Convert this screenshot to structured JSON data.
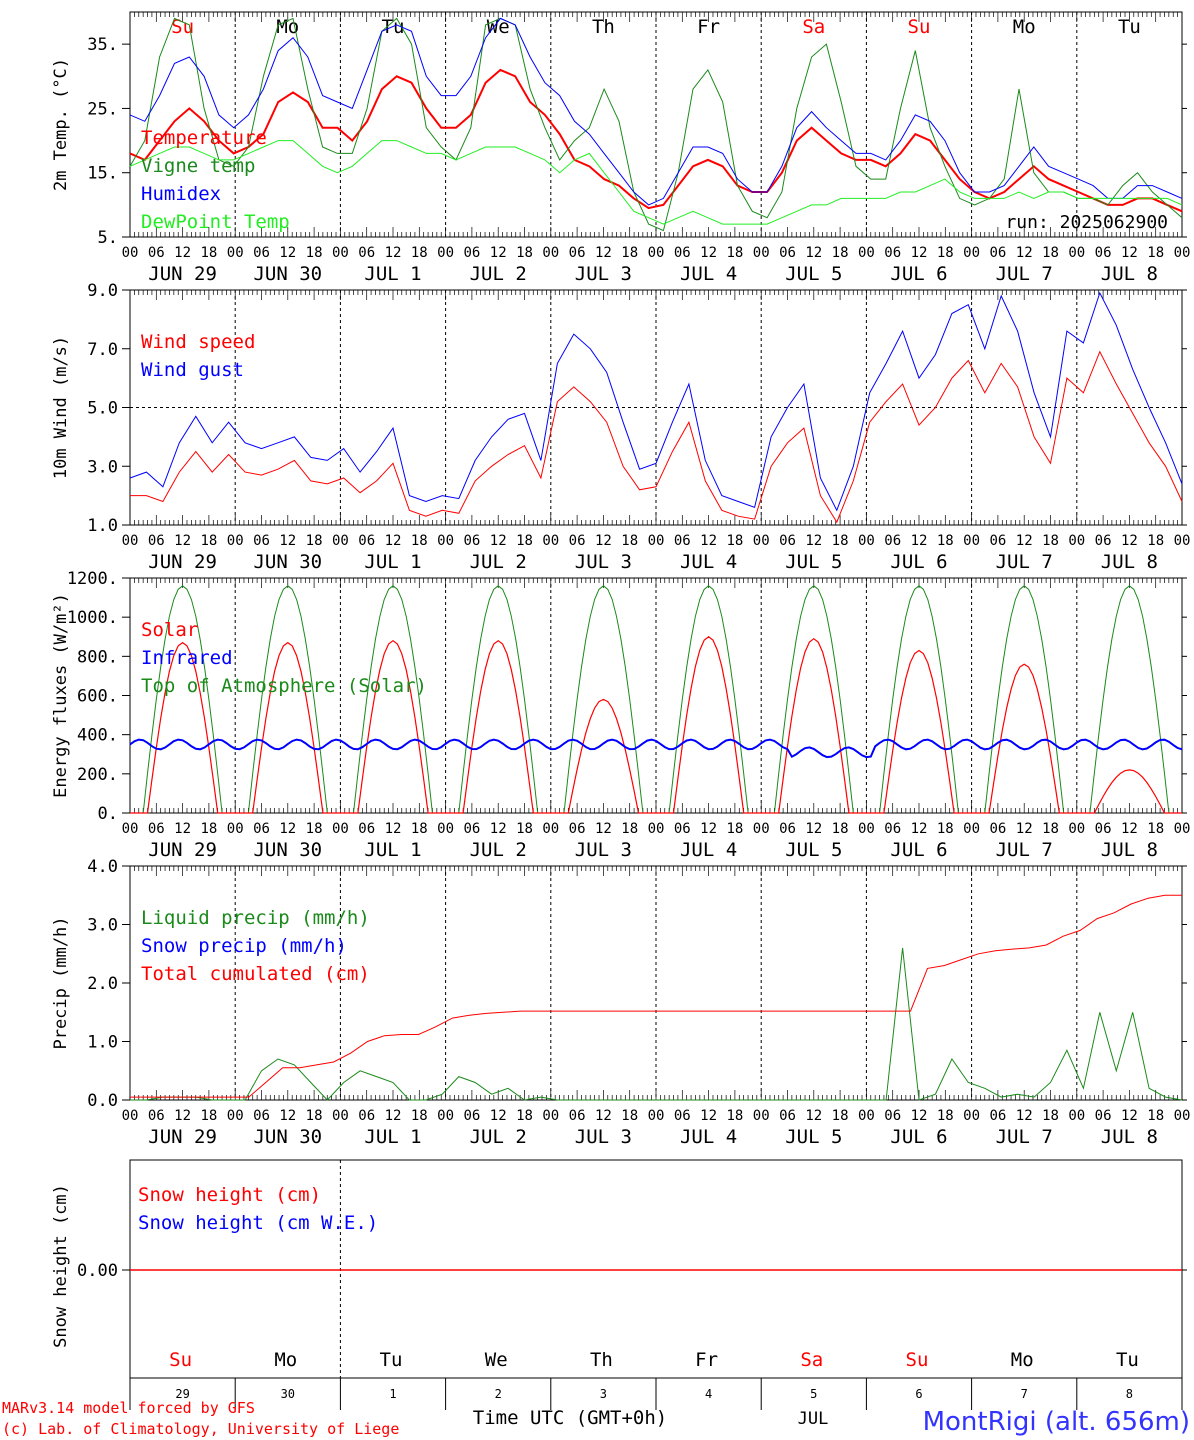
{
  "run_label": "run: 2025062900",
  "x_time_labels": [
    "00",
    "06",
    "12",
    "18"
  ],
  "date_labels": [
    "JUN 29",
    "JUN 30",
    "JUL  1",
    "JUL  2",
    "JUL  3",
    "JUL  4",
    "JUL  5",
    "JUL  6",
    "JUL  7",
    "JUL  8"
  ],
  "weekdays": [
    "Su",
    "Mo",
    "Tu",
    "We",
    "Th",
    "Fr",
    "Sa",
    "Su",
    "Mo",
    "Tu"
  ],
  "weekday_colors": [
    "#ff0000",
    "#000000",
    "#000000",
    "#000000",
    "#000000",
    "#000000",
    "#ff0000",
    "#ff0000",
    "#000000",
    "#000000"
  ],
  "footer": {
    "credit_line1": "MARv3.14 model forced by GFS",
    "credit_line2": "(c) Lab. of Climatology, University of Liege",
    "axis_title": "Time UTC (GMT+0h)",
    "month_label": "JUL",
    "day_numbers": [
      "29",
      "30",
      "1",
      "2",
      "3",
      "4",
      "5",
      "6",
      "7",
      "8"
    ],
    "station": "MontRigi (alt. 656m)"
  },
  "colors": {
    "red": "#ff0000",
    "green": "#1a8a1a",
    "blue": "#0000ff",
    "lightgreen": "#22ee22"
  },
  "chart_data": [
    {
      "type": "line",
      "ylabel": "2m Temp. (°C)",
      "ylim": [
        5,
        40
      ],
      "yticks": [
        "35.",
        "25.",
        "15.",
        "5."
      ],
      "ytick_values": [
        35,
        25,
        15,
        5
      ],
      "hour_step": 6,
      "series": [
        {
          "name": "Temperature",
          "color": "#ff0000",
          "width": 2,
          "values": [
            18,
            17,
            20,
            23,
            25,
            23,
            20,
            18,
            19,
            21,
            26,
            27.5,
            26,
            22,
            22,
            20,
            23,
            28,
            30,
            29,
            25,
            22,
            22,
            24,
            29,
            31,
            30,
            26,
            24,
            21,
            17,
            16,
            14,
            13,
            11,
            9.5,
            10,
            13,
            16,
            17,
            16,
            13,
            12,
            12,
            15,
            20,
            22,
            20,
            18,
            17,
            17,
            16,
            18,
            21,
            20,
            17,
            14,
            12,
            11,
            12,
            14,
            16,
            14,
            13,
            12,
            11,
            10,
            10,
            11,
            11,
            10,
            9
          ]
        },
        {
          "name": "Vigne temp",
          "color": "#1a8a1a",
          "width": 1,
          "values": [
            16,
            20,
            33,
            39,
            38,
            25,
            17,
            16,
            19,
            30,
            38,
            39,
            28,
            19,
            18,
            18,
            25,
            37,
            39,
            35,
            22,
            19,
            17,
            22,
            38,
            39,
            38,
            28,
            22,
            17,
            20,
            22,
            28,
            23,
            12,
            7,
            6,
            15,
            28,
            31,
            26,
            13,
            9,
            8,
            12,
            25,
            33,
            35,
            26,
            16,
            14,
            14,
            25,
            34,
            22,
            16,
            11,
            10,
            11,
            14,
            28,
            15,
            12,
            12,
            11,
            11,
            10,
            13,
            15,
            12,
            10,
            8
          ]
        },
        {
          "name": "Humidex",
          "color": "#0000ff",
          "width": 1,
          "values": [
            24,
            23,
            27,
            32,
            33,
            30,
            24,
            22,
            24,
            28,
            34,
            36,
            33,
            27,
            26,
            25,
            31,
            37,
            38,
            37,
            30,
            27,
            27,
            30,
            36,
            39,
            38,
            33,
            29,
            27,
            23,
            21,
            18,
            15,
            12,
            10,
            11,
            15,
            19,
            19,
            18,
            14,
            12,
            12,
            16,
            22,
            24.5,
            22,
            20,
            18,
            18,
            17,
            20,
            24,
            23,
            20,
            15,
            12,
            12,
            13,
            16,
            19,
            16,
            15,
            14,
            13,
            11,
            11,
            13,
            13,
            12,
            11
          ]
        },
        {
          "name": "DewPoint Temp",
          "color": "#22ee22",
          "width": 1,
          "values": [
            16,
            17,
            18,
            19,
            19,
            18,
            17,
            17,
            18,
            19,
            20,
            20,
            18,
            16,
            15,
            16,
            18,
            20,
            20,
            19,
            18,
            18,
            17,
            18,
            19,
            19,
            19,
            18,
            17,
            15,
            17,
            18,
            15,
            12,
            9,
            8,
            7,
            8,
            9,
            8,
            7,
            7,
            7,
            7,
            8,
            9,
            10,
            10,
            11,
            11,
            11,
            11,
            12,
            12,
            13,
            14,
            12,
            11,
            11,
            11,
            12,
            11,
            12,
            12,
            11,
            11,
            11,
            11,
            11,
            11,
            11,
            10
          ]
        }
      ]
    },
    {
      "type": "line",
      "ylabel": "10m Wind (m/s)",
      "ylim": [
        1,
        9
      ],
      "yticks": [
        "9.0",
        "7.0",
        "5.0",
        "3.0",
        "1.0"
      ],
      "ytick_values": [
        9,
        7,
        5,
        3,
        1
      ],
      "hour_step": 6,
      "series": [
        {
          "name": "Wind speed",
          "color": "#ff0000",
          "width": 1,
          "values": [
            2,
            2,
            1.8,
            2.8,
            3.5,
            2.8,
            3.4,
            2.8,
            2.7,
            2.9,
            3.2,
            2.5,
            2.4,
            2.6,
            2.1,
            2.5,
            3.1,
            1.5,
            1.3,
            1.5,
            1.4,
            2.5,
            3.0,
            3.4,
            3.7,
            2.6,
            5.2,
            5.7,
            5.2,
            4.5,
            3.0,
            2.2,
            2.3,
            3.5,
            4.5,
            2.5,
            1.5,
            1.3,
            1.2,
            3.0,
            3.8,
            4.3,
            2.0,
            1.1,
            2.5,
            4.5,
            5.2,
            5.8,
            4.4,
            5.0,
            6.0,
            6.6,
            5.5,
            6.5,
            5.7,
            4.0,
            3.1,
            6.0,
            5.5,
            6.9,
            5.8,
            4.8,
            3.8,
            3.0,
            1.8
          ]
        },
        {
          "name": "Wind gust",
          "color": "#0000ff",
          "width": 1,
          "values": [
            2.6,
            2.8,
            2.3,
            3.8,
            4.7,
            3.8,
            4.5,
            3.8,
            3.6,
            3.8,
            4.0,
            3.3,
            3.2,
            3.6,
            2.8,
            3.5,
            4.3,
            2.0,
            1.8,
            2.0,
            1.9,
            3.2,
            4.0,
            4.6,
            4.8,
            3.2,
            6.5,
            7.5,
            7.0,
            6.2,
            4.5,
            2.9,
            3.1,
            4.5,
            5.8,
            3.2,
            2.0,
            1.8,
            1.6,
            4.0,
            5.0,
            5.8,
            2.6,
            1.5,
            3.0,
            5.5,
            6.5,
            7.6,
            6.0,
            6.8,
            8.2,
            8.5,
            7.0,
            8.8,
            7.6,
            5.5,
            4.0,
            7.6,
            7.2,
            8.9,
            7.8,
            6.3,
            5.0,
            3.8,
            2.4
          ]
        }
      ]
    },
    {
      "type": "line",
      "ylabel": "Energy fluxes (W/m²)",
      "ylim": [
        0,
        1200
      ],
      "yticks": [
        "1200.",
        "1000.",
        "800.",
        "600.",
        "400.",
        "200.",
        "0."
      ],
      "ytick_values": [
        1200,
        1000,
        800,
        600,
        400,
        200,
        0
      ],
      "solar_peaks": [
        870,
        870,
        880,
        880,
        580,
        900,
        890,
        830,
        760,
        220
      ],
      "toa_peak": 1160,
      "infrared_level": 350,
      "series": [
        {
          "name": "Solar",
          "color": "#ff0000",
          "width": 1
        },
        {
          "name": "Infrared",
          "color": "#0000ff",
          "width": 2
        },
        {
          "name": "Top of Atmosphere (Solar)",
          "color": "#1a8a1a",
          "width": 1
        }
      ]
    },
    {
      "type": "line",
      "ylabel": "Precip (mm/h)",
      "ylim": [
        0,
        4
      ],
      "yticks": [
        "4.0",
        "3.0",
        "2.0",
        "1.0",
        "0.0"
      ],
      "ytick_values": [
        4,
        3,
        2,
        1,
        0
      ],
      "hour_step": 6,
      "series": [
        {
          "name": "Liquid precip (mm/h)",
          "color": "#1a8a1a",
          "width": 1,
          "values": [
            0,
            0,
            0.05,
            0.05,
            0.05,
            0,
            0,
            0,
            0.5,
            0.7,
            0.6,
            0.3,
            0,
            0.3,
            0.5,
            0.4,
            0.3,
            0,
            0,
            0.1,
            0.4,
            0.3,
            0.1,
            0.2,
            0,
            0.05,
            0,
            0,
            0,
            0,
            0,
            0,
            0,
            0,
            0,
            0,
            0,
            0,
            0,
            0,
            0,
            0,
            0,
            0,
            0,
            0,
            0,
            2.6,
            0,
            0.1,
            0.7,
            0.3,
            0.2,
            0.05,
            0.1,
            0.05,
            0.3,
            0.85,
            0.2,
            1.5,
            0.5,
            1.5,
            0.2,
            0.05,
            0
          ]
        },
        {
          "name": "Snow precip (mm/h)",
          "color": "#0000ff",
          "width": 1,
          "values": []
        },
        {
          "name": "Total cumulated (cm)",
          "color": "#ff0000",
          "width": 1,
          "values": [
            0.05,
            0.05,
            0.05,
            0.05,
            0.05,
            0.05,
            0.05,
            0.05,
            0.3,
            0.55,
            0.55,
            0.6,
            0.65,
            0.8,
            1.0,
            1.1,
            1.12,
            1.12,
            1.25,
            1.4,
            1.45,
            1.48,
            1.5,
            1.52,
            1.52,
            1.52,
            1.52,
            1.52,
            1.52,
            1.52,
            1.52,
            1.52,
            1.52,
            1.52,
            1.52,
            1.52,
            1.52,
            1.52,
            1.52,
            1.52,
            1.52,
            1.52,
            1.52,
            1.52,
            1.52,
            1.52,
            1.52,
            2.25,
            2.3,
            2.4,
            2.5,
            2.55,
            2.58,
            2.6,
            2.65,
            2.8,
            2.9,
            3.1,
            3.2,
            3.35,
            3.45,
            3.5,
            3.5
          ]
        }
      ]
    },
    {
      "type": "line",
      "ylabel": "Snow height (cm)",
      "yticks": [
        "0.00"
      ],
      "ytick_values": [
        0
      ],
      "series": [
        {
          "name": "Snow height (cm)",
          "color": "#ff0000",
          "width": 1,
          "values": [
            0
          ]
        },
        {
          "name": "Snow height (cm W.E.)",
          "color": "#0000ff",
          "width": 1,
          "values": []
        }
      ]
    }
  ]
}
